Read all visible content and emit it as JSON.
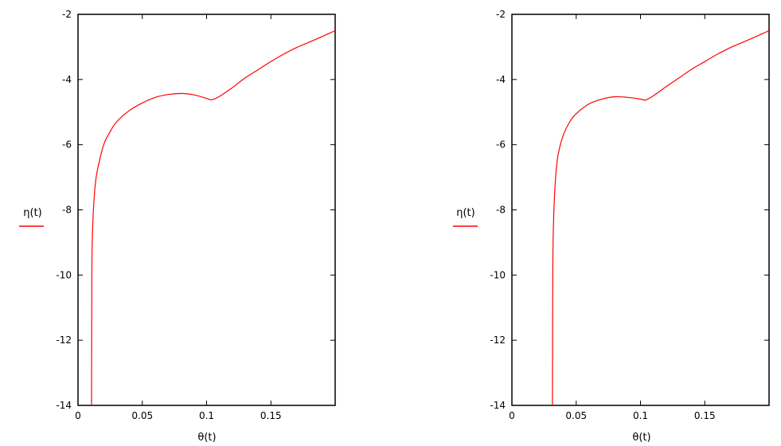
{
  "chart_data": [
    {
      "type": "line",
      "title": "",
      "xlabel": "θ(t)",
      "ylabel": "η(t)",
      "xlim": [
        0,
        0.2
      ],
      "ylim": [
        -14,
        -2
      ],
      "x_ticks": [
        "0",
        "0.05",
        "0.1",
        "0.15"
      ],
      "y_ticks": [
        "-2",
        "-4",
        "-6",
        "-8",
        "-10",
        "-12",
        "-14"
      ],
      "grid": false,
      "line_color": "#ff0000",
      "series": [
        {
          "name": "η(t)",
          "points": [
            [
              0.0105,
              -14
            ],
            [
              0.0108,
              -9.8
            ],
            [
              0.0115,
              -8.4
            ],
            [
              0.013,
              -7.4
            ],
            [
              0.015,
              -6.8
            ],
            [
              0.02,
              -6.0
            ],
            [
              0.025,
              -5.6
            ],
            [
              0.03,
              -5.3
            ],
            [
              0.04,
              -4.95
            ],
            [
              0.05,
              -4.72
            ],
            [
              0.06,
              -4.55
            ],
            [
              0.07,
              -4.46
            ],
            [
              0.08,
              -4.43
            ],
            [
              0.09,
              -4.47
            ],
            [
              0.1,
              -4.58
            ],
            [
              0.104,
              -4.62
            ],
            [
              0.11,
              -4.52
            ],
            [
              0.12,
              -4.25
            ],
            [
              0.13,
              -3.95
            ],
            [
              0.14,
              -3.7
            ],
            [
              0.15,
              -3.45
            ],
            [
              0.16,
              -3.22
            ],
            [
              0.17,
              -3.02
            ],
            [
              0.18,
              -2.85
            ],
            [
              0.19,
              -2.68
            ],
            [
              0.2,
              -2.5
            ]
          ]
        }
      ]
    },
    {
      "type": "line",
      "title": "",
      "xlabel": "θ(t)",
      "ylabel": "η(t)",
      "xlim": [
        0,
        0.2
      ],
      "ylim": [
        -14,
        -2
      ],
      "x_ticks": [
        "0",
        "0.05",
        "0.1",
        "0.15"
      ],
      "y_ticks": [
        "-2",
        "-4",
        "-6",
        "-8",
        "-10",
        "-12",
        "-14"
      ],
      "grid": false,
      "line_color": "#ff0000",
      "series": [
        {
          "name": "η(t)",
          "points": [
            [
              0.0315,
              -14
            ],
            [
              0.0318,
              -9.8
            ],
            [
              0.0325,
              -8.2
            ],
            [
              0.034,
              -7.0
            ],
            [
              0.036,
              -6.3
            ],
            [
              0.04,
              -5.7
            ],
            [
              0.045,
              -5.3
            ],
            [
              0.05,
              -5.05
            ],
            [
              0.06,
              -4.75
            ],
            [
              0.07,
              -4.6
            ],
            [
              0.08,
              -4.53
            ],
            [
              0.09,
              -4.55
            ],
            [
              0.1,
              -4.6
            ],
            [
              0.104,
              -4.63
            ],
            [
              0.11,
              -4.5
            ],
            [
              0.12,
              -4.22
            ],
            [
              0.13,
              -3.95
            ],
            [
              0.14,
              -3.68
            ],
            [
              0.15,
              -3.45
            ],
            [
              0.16,
              -3.22
            ],
            [
              0.17,
              -3.02
            ],
            [
              0.18,
              -2.85
            ],
            [
              0.19,
              -2.68
            ],
            [
              0.2,
              -2.5
            ]
          ]
        }
      ]
    }
  ]
}
